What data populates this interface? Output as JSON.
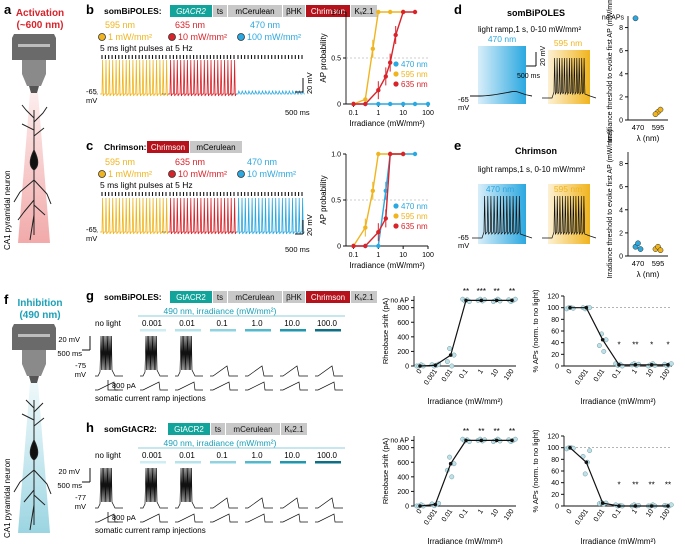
{
  "panels": {
    "a": {
      "letter": "a",
      "title": "Activation",
      "subtitle": "(~600 nm)",
      "neuron": "CA1 pyramidal neuron"
    },
    "b": {
      "letter": "b",
      "construct": [
        "somBiPOLES:",
        "GtACR2",
        "ts",
        "mCerulean",
        "βHK",
        "Chrimson",
        "Kᵥ2.1"
      ],
      "conds": [
        {
          "wl": "595 nm",
          "irr": "1 mW/mm²",
          "color": "#f0b41e"
        },
        {
          "wl": "635 nm",
          "irr": "10 mW/mm²",
          "color": "#d9232a"
        },
        {
          "wl": "470 nm",
          "irr": "100 mW/mm²",
          "color": "#2ba8e0"
        }
      ],
      "pulses": "5 ms light pulses at 5 Hz",
      "vrest": "-65",
      "vunit": "mV",
      "scaleV": "20 mV",
      "scaleT": "500 ms"
    },
    "c": {
      "letter": "c",
      "construct": [
        "Chrimson:",
        "Chrimson",
        "mCerulean"
      ],
      "conds": [
        {
          "wl": "595 nm",
          "irr": "1 mW/mm²",
          "color": "#f0b41e"
        },
        {
          "wl": "635 nm",
          "irr": "10 mW/mm²",
          "color": "#d9232a"
        },
        {
          "wl": "470 nm",
          "irr": "10 mW/mm²",
          "color": "#2ba8e0"
        }
      ],
      "pulses": "5 ms light pulses at 5 Hz",
      "vrest": "-65",
      "vunit": "mV",
      "scaleV": "20 mV",
      "scaleT": "500 ms"
    },
    "d": {
      "letter": "d",
      "title": "somBiPOLES",
      "ramp": "light ramp,1 s, 0-10 mW/mm²",
      "wl1": "470 nm",
      "wl2": "595 nm",
      "vrest": "-65",
      "vunit": "mV",
      "scaleV": "20 mV",
      "scaleT": "500 ms",
      "noAP": "no APs"
    },
    "e": {
      "letter": "e",
      "title": "Chrimson",
      "ramp": "light ramps,1 s, 0-10 mW/mm²",
      "wl1": "470 nm",
      "wl2": "595 nm",
      "vrest": "-65",
      "vunit": "mV",
      "scaleV": "20 mV",
      "scaleT": "500 ms"
    },
    "f": {
      "letter": "f",
      "title": "Inhibition",
      "subtitle": "(490 nm)",
      "neuron": "CA1 pyramidal neuron"
    },
    "g": {
      "letter": "g",
      "construct": [
        "somBiPOLES:",
        "GtACR2",
        "ts",
        "mCerulean",
        "βHK",
        "Chrimson",
        "Kᵥ2.1"
      ],
      "header": "490 nm, irradiance (mW/mm²)",
      "nolight": "no light",
      "levels": [
        "0.001",
        "0.01",
        "0.1",
        "1.0",
        "10.0",
        "100.0"
      ],
      "scaleV": "20 mV",
      "scaleT": "500 ms",
      "vrest": "-75",
      "vunit": "mV",
      "current": "800 pA",
      "ramp_label": "somatic current ramp injections"
    },
    "h": {
      "letter": "h",
      "construct": [
        "somGtACR2:",
        "GtACR2",
        "ts",
        "mCerulean",
        "Kᵥ2.1"
      ],
      "header": "490 nm, irradiance (mW/mm²)",
      "nolight": "no light",
      "levels": [
        "0.001",
        "0.01",
        "0.1",
        "1.0",
        "10.0",
        "100.0"
      ],
      "scaleV": "20 mV",
      "scaleT": "500 ms",
      "vrest": "-77",
      "vunit": "mV",
      "current": "800 pA",
      "ramp_label": "somatic current ramp injections"
    }
  },
  "chart_data": [
    {
      "id": "b-ap",
      "type": "line",
      "xlabel": "Irradiance (mW/mm²)",
      "ylabel": "AP probability",
      "xscale": "log",
      "xlim": [
        0.05,
        100
      ],
      "ylim": [
        0,
        1
      ],
      "yticks": [
        "0",
        "0.5",
        "1.0"
      ],
      "xticks": [
        "0.1",
        "1",
        "10",
        "100"
      ],
      "legend": [
        "470 nm",
        "595 nm",
        "635 nm"
      ],
      "series": [
        {
          "name": "470 nm",
          "color": "#2ba8e0",
          "x": [
            0.1,
            0.3,
            1,
            3,
            10,
            30,
            100
          ],
          "y": [
            0,
            0,
            0,
            0,
            0,
            0,
            0
          ]
        },
        {
          "name": "595 nm",
          "color": "#f0b41e",
          "x": [
            0.1,
            0.3,
            0.6,
            1,
            3,
            10
          ],
          "y": [
            0,
            0.05,
            0.6,
            1,
            1,
            1
          ]
        },
        {
          "name": "635 nm",
          "color": "#d9232a",
          "x": [
            0.1,
            0.3,
            1,
            2,
            3,
            5,
            10,
            30
          ],
          "y": [
            0,
            0,
            0.15,
            0.3,
            0.45,
            0.75,
            1,
            1
          ]
        }
      ]
    },
    {
      "id": "c-ap",
      "type": "line",
      "xlabel": "Irradiance (mW/mm²)",
      "ylabel": "AP probability",
      "xscale": "log",
      "xlim": [
        0.05,
        100
      ],
      "ylim": [
        0,
        1
      ],
      "yticks": [
        "0",
        "0.5",
        "1.0"
      ],
      "xticks": [
        "0.1",
        "1",
        "10",
        "100"
      ],
      "legend": [
        "470 nm",
        "595 nm",
        "635 nm"
      ],
      "series": [
        {
          "name": "470 nm",
          "color": "#2ba8e0",
          "x": [
            0.1,
            0.3,
            1,
            2,
            3,
            10,
            30
          ],
          "y": [
            0,
            0,
            0,
            0.6,
            1,
            1,
            1
          ]
        },
        {
          "name": "595 nm",
          "color": "#f0b41e",
          "x": [
            0.1,
            0.3,
            0.6,
            1,
            3,
            10
          ],
          "y": [
            0,
            0.2,
            0.6,
            1,
            1,
            1
          ]
        },
        {
          "name": "635 nm",
          "color": "#d9232a",
          "x": [
            0.1,
            0.3,
            1,
            2,
            3,
            10
          ],
          "y": [
            0,
            0,
            0.15,
            0.3,
            1,
            1
          ]
        }
      ]
    },
    {
      "id": "d-thr",
      "type": "scatter",
      "ylabel": "Irradiance threshold to evoke first AP (mW/mm²)",
      "xlabel": "λ (nm)",
      "categories": [
        "470",
        "595"
      ],
      "yticks": [
        "0",
        "2",
        "4",
        "6",
        "8"
      ],
      "noap": "no APs",
      "points": [
        {
          "cat": "470",
          "y": 8.8,
          "color": "#2ba8e0"
        },
        {
          "cat": "595",
          "y": 0.7,
          "color": "#f0b41e"
        },
        {
          "cat": "595",
          "y": 0.9,
          "color": "#f0b41e"
        },
        {
          "cat": "595",
          "y": 0.5,
          "color": "#f0b41e"
        }
      ]
    },
    {
      "id": "e-thr",
      "type": "scatter",
      "ylabel": "Irradiance threshold to evoke first AP (mW/mm²)",
      "xlabel": "λ (nm)",
      "categories": [
        "470",
        "595"
      ],
      "yticks": [
        "0",
        "2",
        "4",
        "6",
        "8"
      ],
      "points": [
        {
          "cat": "470",
          "y": 0.8,
          "color": "#2ba8e0"
        },
        {
          "cat": "470",
          "y": 1.1,
          "color": "#2ba8e0"
        },
        {
          "cat": "470",
          "y": 0.6,
          "color": "#2ba8e0"
        },
        {
          "cat": "595",
          "y": 0.6,
          "color": "#f0b41e"
        },
        {
          "cat": "595",
          "y": 0.8,
          "color": "#f0b41e"
        },
        {
          "cat": "595",
          "y": 0.5,
          "color": "#f0b41e"
        }
      ]
    },
    {
      "id": "g-rheo",
      "type": "line",
      "ylabel": "Rheobase shift (pA)",
      "xlabel": "Irradiance (mW/mm²)",
      "yticks": [
        "0",
        "200",
        "400",
        "600",
        "800"
      ],
      "noap": "no AP",
      "categories": [
        "0",
        "0.001",
        "0.01",
        "0.1",
        "1",
        "10",
        "100"
      ],
      "means": [
        0,
        10,
        150,
        900,
        900,
        900,
        900
      ],
      "stars": [
        "",
        "",
        "",
        "**",
        "***",
        "**",
        "**"
      ]
    },
    {
      "id": "g-pct",
      "type": "line",
      "ylabel": "% APs (norm. to no light)",
      "xlabel": "Irradiance (mW/mm²)",
      "yticks": [
        "0",
        "20",
        "40",
        "60",
        "80",
        "100",
        "120"
      ],
      "categories": [
        "0",
        "0.001",
        "0.01",
        "0.1",
        "1",
        "10",
        "100"
      ],
      "means": [
        100,
        100,
        45,
        2,
        2,
        2,
        2
      ],
      "stars": [
        "",
        "",
        "",
        "*",
        "**",
        "*",
        "*"
      ]
    },
    {
      "id": "h-rheo",
      "type": "line",
      "ylabel": "Rheobase shift (pA)",
      "xlabel": "Irradiance (mW/mm²)",
      "yticks": [
        "0",
        "200",
        "400",
        "600",
        "800"
      ],
      "noap": "no AP",
      "categories": [
        "0",
        "0.001",
        "0.01",
        "0.1",
        "1",
        "10",
        "100"
      ],
      "means": [
        0,
        20,
        580,
        900,
        900,
        900,
        900
      ],
      "stars": [
        "",
        "",
        "",
        "**",
        "**",
        "**",
        "**"
      ]
    },
    {
      "id": "h-pct",
      "type": "line",
      "ylabel": "% APs (norm. to no light)",
      "xlabel": "Irradiance (mW/mm²)",
      "yticks": [
        "0",
        "20",
        "40",
        "60",
        "80",
        "100",
        "120"
      ],
      "categories": [
        "0",
        "0.001",
        "0.01",
        "0.1",
        "1",
        "10",
        "100"
      ],
      "means": [
        100,
        75,
        5,
        0,
        0,
        0,
        0
      ],
      "stars": [
        "",
        "",
        "",
        "*",
        "**",
        "**",
        "**"
      ]
    }
  ]
}
